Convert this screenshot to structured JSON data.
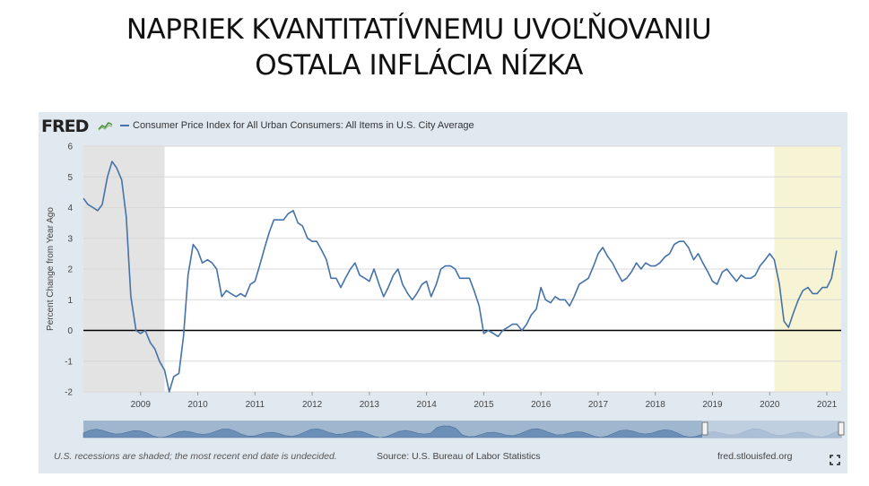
{
  "slide": {
    "title_line1": "NAPRIEK KVANTITATÍVNEMU UVOĽŇOVANIU",
    "title_line2": "OSTALA INFLÁCIA NÍZKA"
  },
  "fred": {
    "logo_text": "FRED",
    "series_legend": "Consumer Price Index for All Urban Consumers: All Items in U.S. City Average",
    "recession_note": "U.S. recessions are shaded; the most recent end date is undecided.",
    "source": "Source: U.S. Bureau of Labor Statistics",
    "site": "fred.stlouisfed.org",
    "icons": [
      "fred-logo-graph-icon",
      "fullscreen-expand-icon",
      "range-handle-icon"
    ]
  },
  "colors": {
    "line": "#4572a7",
    "recession_shade": "#e3e3e3",
    "undecided_recession_shade": "#f7f4d6",
    "panel": "#e1e9f0",
    "zero_line": "#000000"
  },
  "chart_data": {
    "type": "line",
    "ylabel": "Percent Change from Year Ago",
    "ylim": [
      -2,
      6
    ],
    "yticks": [
      "-2",
      "-1",
      "0",
      "1",
      "2",
      "3",
      "4",
      "5",
      "6"
    ],
    "xlim": [
      2008.0,
      2021.25
    ],
    "xticks": [
      "2009",
      "2010",
      "2011",
      "2012",
      "2013",
      "2014",
      "2015",
      "2016",
      "2017",
      "2018",
      "2019",
      "2020",
      "2021"
    ],
    "grid": "horizontal",
    "recessions": [
      [
        2008.0,
        2009.42
      ],
      [
        2020.08,
        2021.25
      ]
    ],
    "series": [
      {
        "name": "Consumer Price Index for All Urban Consumers: All Items in U.S. City Average",
        "x": [
          2008.0,
          2008.08,
          2008.17,
          2008.25,
          2008.33,
          2008.42,
          2008.5,
          2008.58,
          2008.67,
          2008.75,
          2008.83,
          2008.92,
          2009.0,
          2009.08,
          2009.17,
          2009.25,
          2009.33,
          2009.42,
          2009.5,
          2009.58,
          2009.67,
          2009.75,
          2009.83,
          2009.92,
          2010.0,
          2010.08,
          2010.17,
          2010.25,
          2010.33,
          2010.42,
          2010.5,
          2010.58,
          2010.67,
          2010.75,
          2010.83,
          2010.92,
          2011.0,
          2011.08,
          2011.17,
          2011.25,
          2011.33,
          2011.42,
          2011.5,
          2011.58,
          2011.67,
          2011.75,
          2011.83,
          2011.92,
          2012.0,
          2012.08,
          2012.17,
          2012.25,
          2012.33,
          2012.42,
          2012.5,
          2012.58,
          2012.67,
          2012.75,
          2012.83,
          2012.92,
          2013.0,
          2013.08,
          2013.17,
          2013.25,
          2013.33,
          2013.42,
          2013.5,
          2013.58,
          2013.67,
          2013.75,
          2013.83,
          2013.92,
          2014.0,
          2014.08,
          2014.17,
          2014.25,
          2014.33,
          2014.42,
          2014.5,
          2014.58,
          2014.67,
          2014.75,
          2014.83,
          2014.92,
          2015.0,
          2015.08,
          2015.17,
          2015.25,
          2015.33,
          2015.42,
          2015.5,
          2015.58,
          2015.67,
          2015.75,
          2015.83,
          2015.92,
          2016.0,
          2016.08,
          2016.17,
          2016.25,
          2016.33,
          2016.42,
          2016.5,
          2016.58,
          2016.67,
          2016.75,
          2016.83,
          2016.92,
          2017.0,
          2017.08,
          2017.17,
          2017.25,
          2017.33,
          2017.42,
          2017.5,
          2017.58,
          2017.67,
          2017.75,
          2017.83,
          2017.92,
          2018.0,
          2018.08,
          2018.17,
          2018.25,
          2018.33,
          2018.42,
          2018.5,
          2018.58,
          2018.67,
          2018.75,
          2018.83,
          2018.92,
          2019.0,
          2019.08,
          2019.17,
          2019.25,
          2019.33,
          2019.42,
          2019.5,
          2019.58,
          2019.67,
          2019.75,
          2019.83,
          2019.92,
          2020.0,
          2020.08,
          2020.17,
          2020.25,
          2020.33,
          2020.42,
          2020.5,
          2020.58,
          2020.67,
          2020.75,
          2020.83,
          2020.92,
          2021.0,
          2021.08,
          2021.17
        ],
        "values": [
          4.3,
          4.1,
          4.0,
          3.9,
          4.1,
          5.0,
          5.5,
          5.3,
          4.9,
          3.7,
          1.1,
          0.0,
          -0.1,
          0.0,
          -0.4,
          -0.6,
          -1.0,
          -1.3,
          -2.0,
          -1.5,
          -1.4,
          -0.2,
          1.8,
          2.8,
          2.6,
          2.2,
          2.3,
          2.2,
          2.0,
          1.1,
          1.3,
          1.2,
          1.1,
          1.2,
          1.1,
          1.5,
          1.6,
          2.1,
          2.7,
          3.2,
          3.6,
          3.6,
          3.6,
          3.8,
          3.9,
          3.5,
          3.4,
          3.0,
          2.9,
          2.9,
          2.6,
          2.3,
          1.7,
          1.7,
          1.4,
          1.7,
          2.0,
          2.2,
          1.8,
          1.7,
          1.6,
          2.0,
          1.5,
          1.1,
          1.4,
          1.8,
          2.0,
          1.5,
          1.2,
          1.0,
          1.2,
          1.5,
          1.6,
          1.1,
          1.5,
          2.0,
          2.1,
          2.1,
          2.0,
          1.7,
          1.7,
          1.7,
          1.3,
          0.8,
          -0.1,
          0.0,
          -0.1,
          -0.2,
          0.0,
          0.1,
          0.2,
          0.2,
          0.0,
          0.2,
          0.5,
          0.7,
          1.4,
          1.0,
          0.9,
          1.1,
          1.0,
          1.0,
          0.8,
          1.1,
          1.5,
          1.6,
          1.7,
          2.1,
          2.5,
          2.7,
          2.4,
          2.2,
          1.9,
          1.6,
          1.7,
          1.9,
          2.2,
          2.0,
          2.2,
          2.1,
          2.1,
          2.2,
          2.4,
          2.5,
          2.8,
          2.9,
          2.9,
          2.7,
          2.3,
          2.5,
          2.2,
          1.9,
          1.6,
          1.5,
          1.9,
          2.0,
          1.8,
          1.6,
          1.8,
          1.7,
          1.7,
          1.8,
          2.1,
          2.3,
          2.5,
          2.3,
          1.5,
          0.3,
          0.1,
          0.6,
          1.0,
          1.3,
          1.4,
          1.2,
          1.2,
          1.4,
          1.4,
          1.7,
          2.6
        ]
      }
    ]
  }
}
